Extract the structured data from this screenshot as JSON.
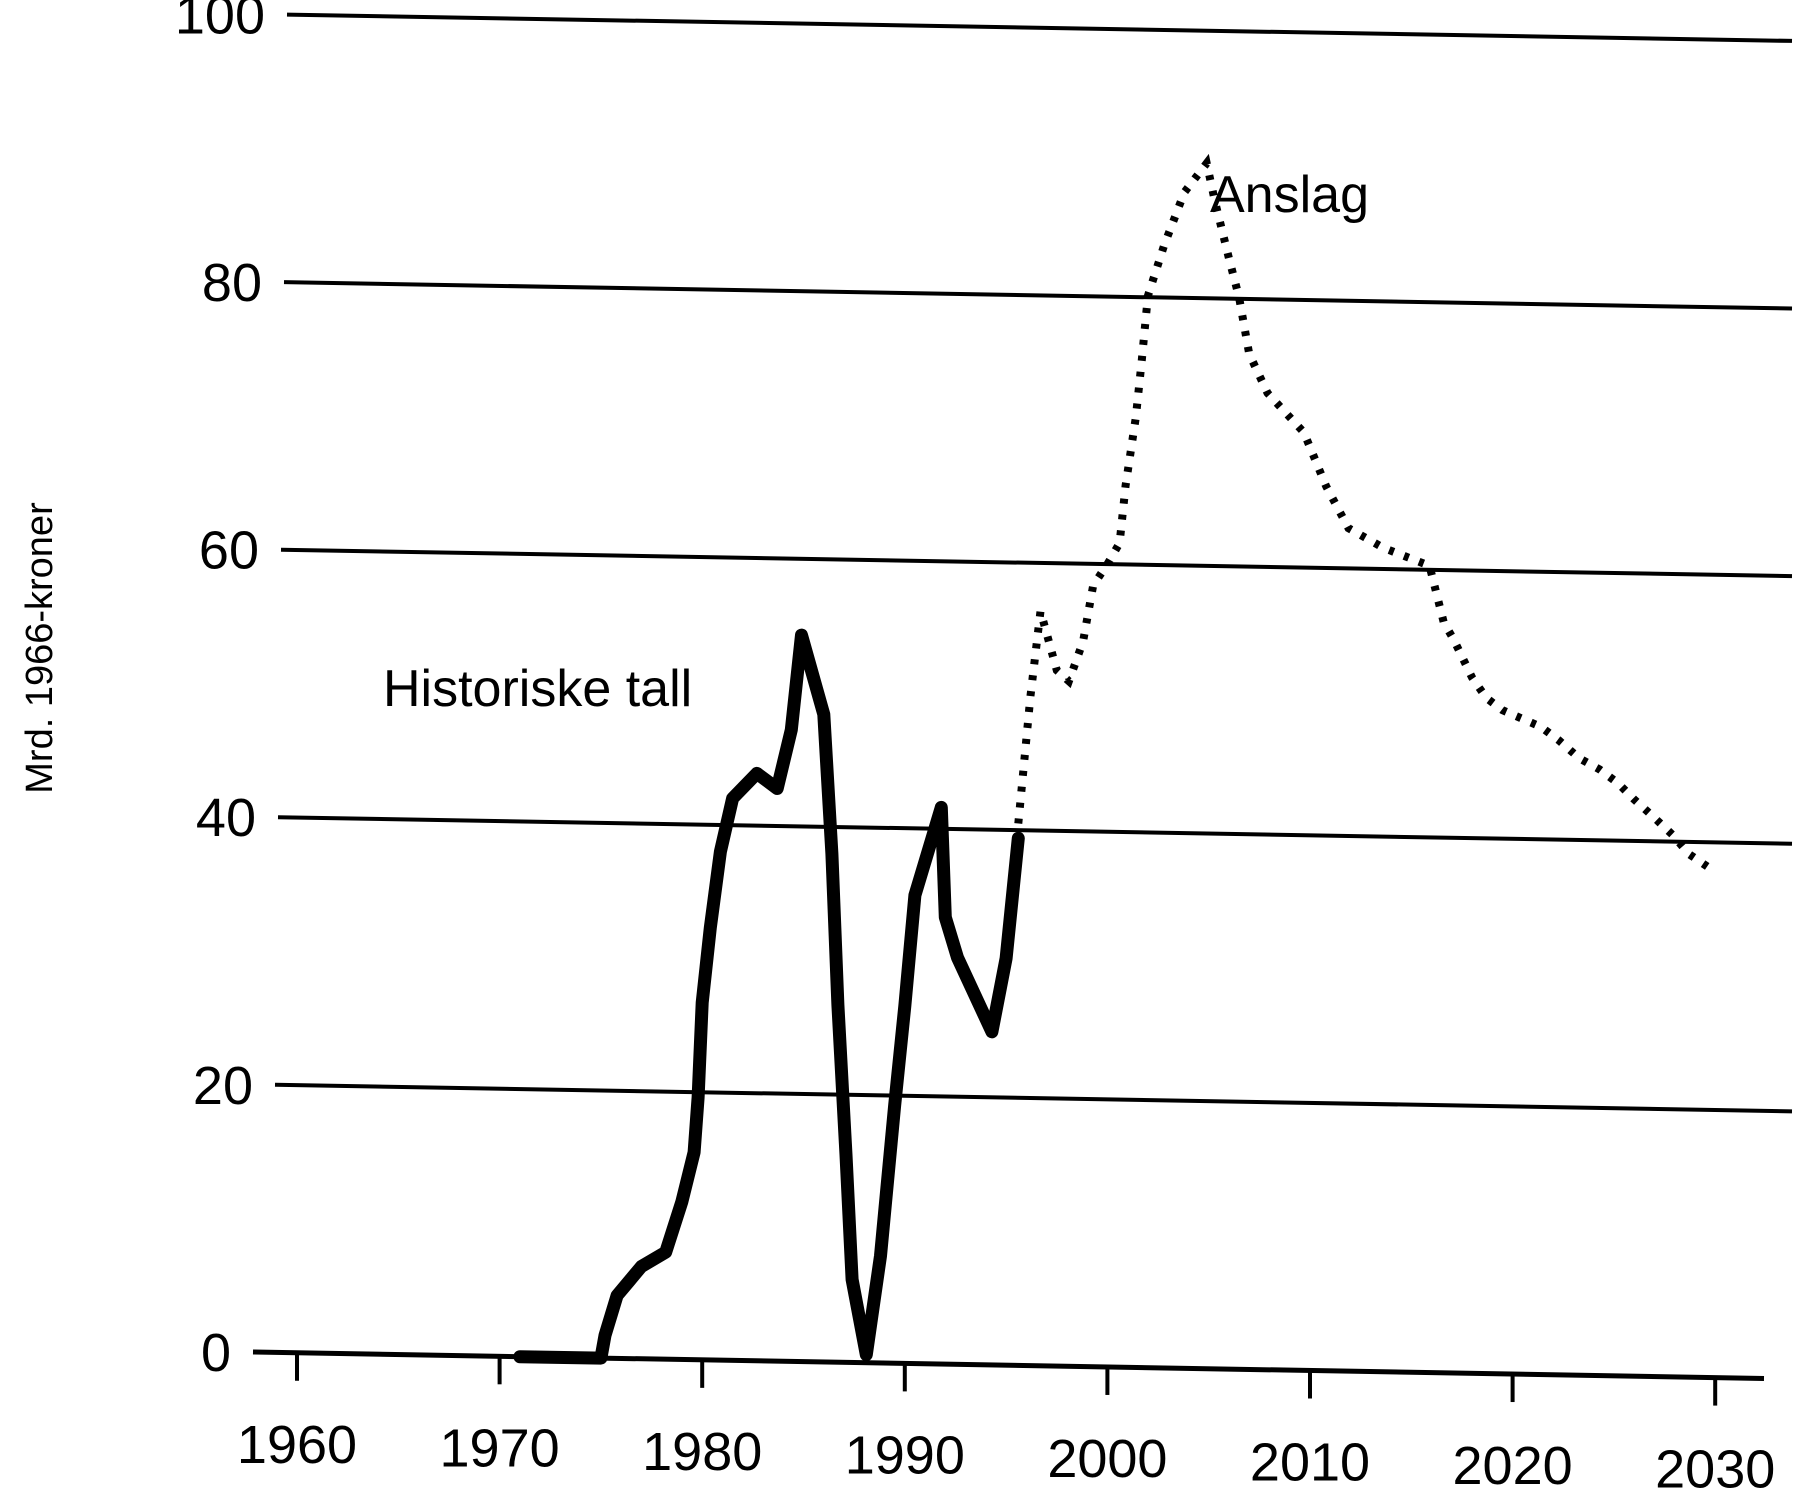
{
  "chart_data": {
    "type": "line",
    "title": "",
    "xlabel": "",
    "ylabel": "Mrd. 1966-kroner",
    "xlim": [
      1960,
      2030
    ],
    "ylim": [
      0,
      100
    ],
    "x_ticks": [
      1960,
      1970,
      1980,
      1990,
      2000,
      2010,
      2020,
      2030
    ],
    "y_ticks": [
      0,
      20,
      40,
      60,
      80,
      100
    ],
    "grid": "horizontal",
    "legend": "none (inline annotations)",
    "annotations": [
      {
        "text": "Historiske tall",
        "near": [
          1978,
          57
        ]
      },
      {
        "text": "Anslag",
        "near": [
          2009,
          88
        ]
      }
    ],
    "series": [
      {
        "name": "Historiske tall",
        "style": "solid",
        "x": [
          1971,
          1975,
          1975.2,
          1975.8,
          1977,
          1978.2,
          1979,
          1979.6,
          1979.8,
          1980,
          1980.4,
          1980.9,
          1981.5,
          1982.7,
          1983.7,
          1984.4,
          1984.9,
          1986,
          1986.4,
          1986.7,
          1987.1,
          1987.4,
          1988.1,
          1988.8,
          1989.5,
          1990,
          1990.5,
          1991.8,
          1992,
          1992.6,
          1994.3,
          1995,
          1995.6
        ],
        "values": [
          0,
          0,
          1.7,
          4.7,
          6.9,
          8,
          11.8,
          15.5,
          19.6,
          26.7,
          32.3,
          38,
          42,
          43.9,
          42.8,
          47.2,
          54.3,
          48.4,
          38,
          26.7,
          15.5,
          6.2,
          0.6,
          8,
          19.3,
          26.7,
          35,
          41.6,
          33.4,
          30.4,
          24.9,
          30.4,
          39.4
        ]
      },
      {
        "name": "Anslag",
        "style": "dotted",
        "x": [
          1995.6,
          1996.2,
          1996.7,
          1997.5,
          1998.1,
          1998.8,
          1999.3,
          2000,
          2000.6,
          2000.9,
          2001.4,
          2001.7,
          2002,
          2002.8,
          2003.8,
          2004.9,
          2005.3,
          2006,
          2006.5,
          2007,
          2007.9,
          2009.7,
          2010.8,
          2011.9,
          2013.6,
          2015.9,
          2016.6,
          2017.1,
          2018,
          2018.7,
          2019.5,
          2021.4,
          2022.3,
          2023.3,
          2024.3,
          2025.2,
          2026,
          2026.9,
          2027.9,
          2028.7,
          2029.8
        ],
        "values": [
          40.5,
          50,
          56.4,
          52,
          51.2,
          54.2,
          58.4,
          60,
          61.6,
          65.9,
          71,
          75.3,
          80.1,
          83.9,
          87.9,
          90.1,
          87.3,
          83,
          80.1,
          75.9,
          73,
          70.1,
          66.1,
          63,
          61.6,
          60.3,
          56.1,
          54.8,
          52,
          50.5,
          49.6,
          48.4,
          47.4,
          46.1,
          45.3,
          44.3,
          43.1,
          41.9,
          40.5,
          39.1,
          38
        ]
      }
    ]
  },
  "labels": {
    "ylabel": "Mrd. 1966-kroner",
    "historical": "Historiske tall",
    "forecast": "Anslag",
    "y_ticks": [
      "0",
      "20",
      "40",
      "60",
      "80",
      "100"
    ],
    "x_ticks": [
      "1960",
      "1970",
      "1980",
      "1990",
      "2000",
      "2010",
      "2020",
      "2030"
    ]
  }
}
